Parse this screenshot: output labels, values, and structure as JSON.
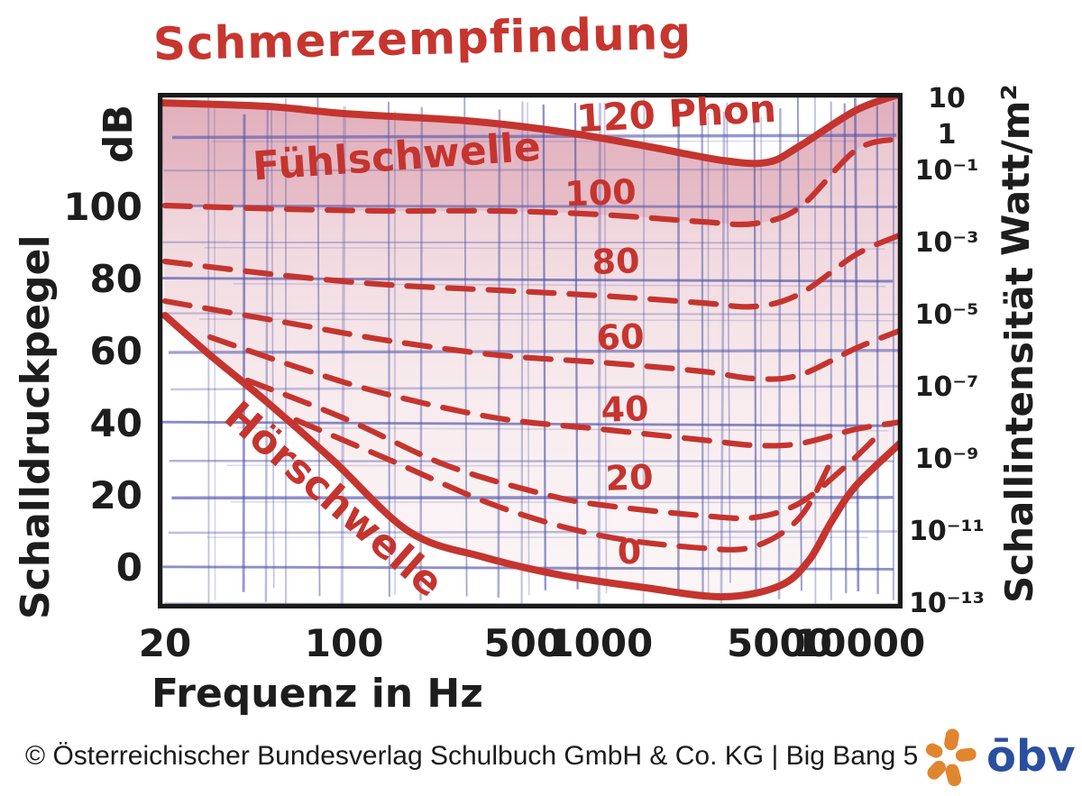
{
  "title": "Schmerzempfindung",
  "footer": {
    "copyright": "© Österreichischer Bundesverlag Schulbuch GmbH & Co. KG |  Big Bang 5",
    "logo_text": "ōbv"
  },
  "colors": {
    "ink_red": "#c5342e",
    "grid_blue": "#5357ad",
    "ink_black": "#1d1d1d",
    "wash_pink_strong": "rgba(207,125,145,0.50)",
    "wash_pink_light": "rgba(228,190,198,0.16)",
    "logo_orange": "#e0862f",
    "logo_blue": "#2b4f9e"
  },
  "chart_data": {
    "type": "line",
    "title": "Schmerzempfindung",
    "xlabel": "Frequenz in Hz",
    "ylabel_left": "Schalldruckpegel",
    "ylabel_left_unit": "dB",
    "ylabel_right": "Schallintensität",
    "ylabel_right_unit": "Watt/m²",
    "x_scale": "log",
    "xlim": [
      20,
      15000
    ],
    "ylim_db": [
      -13,
      133
    ],
    "grid": true,
    "x_ticks": [
      20,
      100,
      500,
      1000,
      5000,
      10000
    ],
    "y_ticks_left": [
      100,
      80,
      60,
      40,
      20,
      0
    ],
    "y_ticks_right": [
      {
        "label": "10",
        "exp": 1
      },
      {
        "label": "1",
        "exp": 0
      },
      {
        "label": "10⁻¹",
        "exp": -1
      },
      {
        "label": "10⁻³",
        "exp": -3
      },
      {
        "label": "10⁻⁵",
        "exp": -5
      },
      {
        "label": "10⁻⁷",
        "exp": -7
      },
      {
        "label": "10⁻⁹",
        "exp": -9
      },
      {
        "label": "10⁻¹¹",
        "exp": -11
      },
      {
        "label": "10⁻¹³",
        "exp": -13
      }
    ],
    "annotations": [
      {
        "id": "fuehlschwelle-label",
        "text": "Fühlschwelle",
        "pos": [
          160,
          114
        ],
        "rot": -4,
        "size": 44
      },
      {
        "id": "hoerschwelle-label",
        "text": "Hörschwelle",
        "pos": [
          91,
          19
        ],
        "rot": 41,
        "size": 44
      },
      {
        "id": "phon-120-label",
        "text": "120 Phon",
        "pos": [
          1980,
          126
        ],
        "rot": -3,
        "size": 42
      }
    ],
    "series": [
      {
        "id": "fuehlschwelle",
        "name": "Fühlschwelle (Schmerzempfindung)",
        "phon": 120,
        "style": "solid",
        "points": [
          [
            19,
            129
          ],
          [
            50,
            128
          ],
          [
            100,
            126
          ],
          [
            300,
            124
          ],
          [
            700,
            121
          ],
          [
            1500,
            117
          ],
          [
            3000,
            113
          ],
          [
            4500,
            112.5
          ],
          [
            6000,
            117
          ],
          [
            10000,
            127
          ],
          [
            15000,
            131.5
          ]
        ]
      },
      {
        "id": "phon-100",
        "name": "100 Phon",
        "phon": 100,
        "style": "dashed",
        "label": "100",
        "label_pos": [
          1000,
          104
        ],
        "points": [
          [
            20,
            100.5
          ],
          [
            60,
            99.5
          ],
          [
            150,
            99
          ],
          [
            400,
            99
          ],
          [
            1000,
            98
          ],
          [
            2500,
            96
          ],
          [
            4000,
            95.5
          ],
          [
            6000,
            100
          ],
          [
            10000,
            116
          ],
          [
            15000,
            119
          ]
        ]
      },
      {
        "id": "phon-80",
        "name": "80 Phon",
        "phon": 80,
        "style": "dashed",
        "label": "80",
        "label_pos": [
          1150,
          85
        ],
        "points": [
          [
            20,
            85
          ],
          [
            60,
            81
          ],
          [
            150,
            78.5
          ],
          [
            400,
            77
          ],
          [
            1000,
            75.5
          ],
          [
            2500,
            73.5
          ],
          [
            4000,
            72.5
          ],
          [
            6000,
            76
          ],
          [
            10000,
            87
          ],
          [
            15000,
            92.5
          ]
        ]
      },
      {
        "id": "phon-60",
        "name": "60 Phon",
        "phon": 60,
        "style": "dashed",
        "label": "60",
        "label_pos": [
          1200,
          64
        ],
        "points": [
          [
            20,
            74
          ],
          [
            60,
            68
          ],
          [
            150,
            63
          ],
          [
            400,
            59
          ],
          [
            1000,
            57
          ],
          [
            2500,
            54.5
          ],
          [
            4000,
            52.5
          ],
          [
            6000,
            53.5
          ],
          [
            10000,
            61
          ],
          [
            15000,
            66
          ]
        ]
      },
      {
        "id": "phon-40",
        "name": "40 Phon",
        "phon": 40,
        "style": "dashed",
        "label": "40",
        "label_pos": [
          1250,
          44
        ],
        "points": [
          [
            30,
            64
          ],
          [
            70,
            55
          ],
          [
            150,
            48
          ],
          [
            400,
            41.5
          ],
          [
            1000,
            38.5
          ],
          [
            2500,
            35.5
          ],
          [
            4000,
            34
          ],
          [
            6000,
            34.5
          ],
          [
            10000,
            38.5
          ],
          [
            15000,
            40.5
          ]
        ]
      },
      {
        "id": "phon-20",
        "name": "20 Phon",
        "phon": 20,
        "style": "dashed",
        "label": "20",
        "label_pos": [
          1300,
          25
        ],
        "points": [
          [
            42,
            52
          ],
          [
            100,
            41.5
          ],
          [
            250,
            28.5
          ],
          [
            600,
            20.5
          ],
          [
            1000,
            17.5
          ],
          [
            2500,
            14.5
          ],
          [
            4000,
            14
          ],
          [
            6000,
            18
          ],
          [
            9000,
            28
          ],
          [
            12000,
            36.5
          ]
        ]
      },
      {
        "id": "phon-0",
        "name": "0 Phon",
        "phon": 0,
        "style": "dashed",
        "label": "0",
        "label_pos": [
          1300,
          4.5
        ],
        "points": [
          [
            65,
            41
          ],
          [
            150,
            30
          ],
          [
            400,
            17
          ],
          [
            1000,
            9
          ],
          [
            2500,
            5.5
          ],
          [
            4000,
            6
          ],
          [
            6000,
            14
          ],
          [
            8000,
            30
          ]
        ]
      },
      {
        "id": "hoerschwelle",
        "name": "Hörschwelle",
        "phon": null,
        "style": "solid",
        "points": [
          [
            20,
            70
          ],
          [
            30,
            59
          ],
          [
            50,
            46
          ],
          [
            90,
            30
          ],
          [
            180,
            10
          ],
          [
            350,
            3
          ],
          [
            700,
            -2
          ],
          [
            1500,
            -5.5
          ],
          [
            3000,
            -8
          ],
          [
            5000,
            -5
          ],
          [
            6500,
            2
          ],
          [
            8000,
            13
          ],
          [
            10000,
            23
          ],
          [
            15000,
            35
          ]
        ]
      }
    ]
  }
}
